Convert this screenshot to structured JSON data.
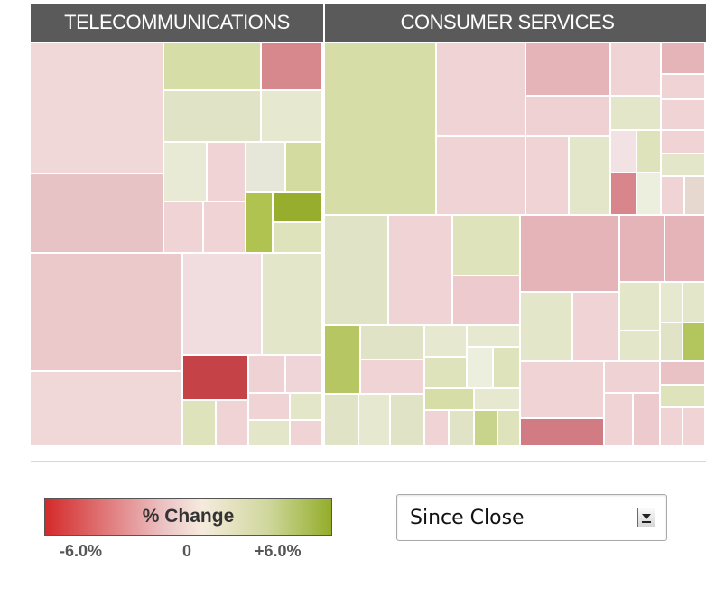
{
  "sectors": {
    "telecom": {
      "label": "TELECOMMUNICATIONS"
    },
    "consumer": {
      "label": "CONSUMER SERVICES"
    }
  },
  "legend": {
    "label": "% Change",
    "min_label": "-6.0%",
    "mid_label": "0",
    "max_label": "+6.0%",
    "colors": {
      "negative": "#d42a2a",
      "neutral": "#f5ebdd",
      "positive": "#93ad2a"
    }
  },
  "timeframe_select": {
    "value": "Since Close"
  }
}
